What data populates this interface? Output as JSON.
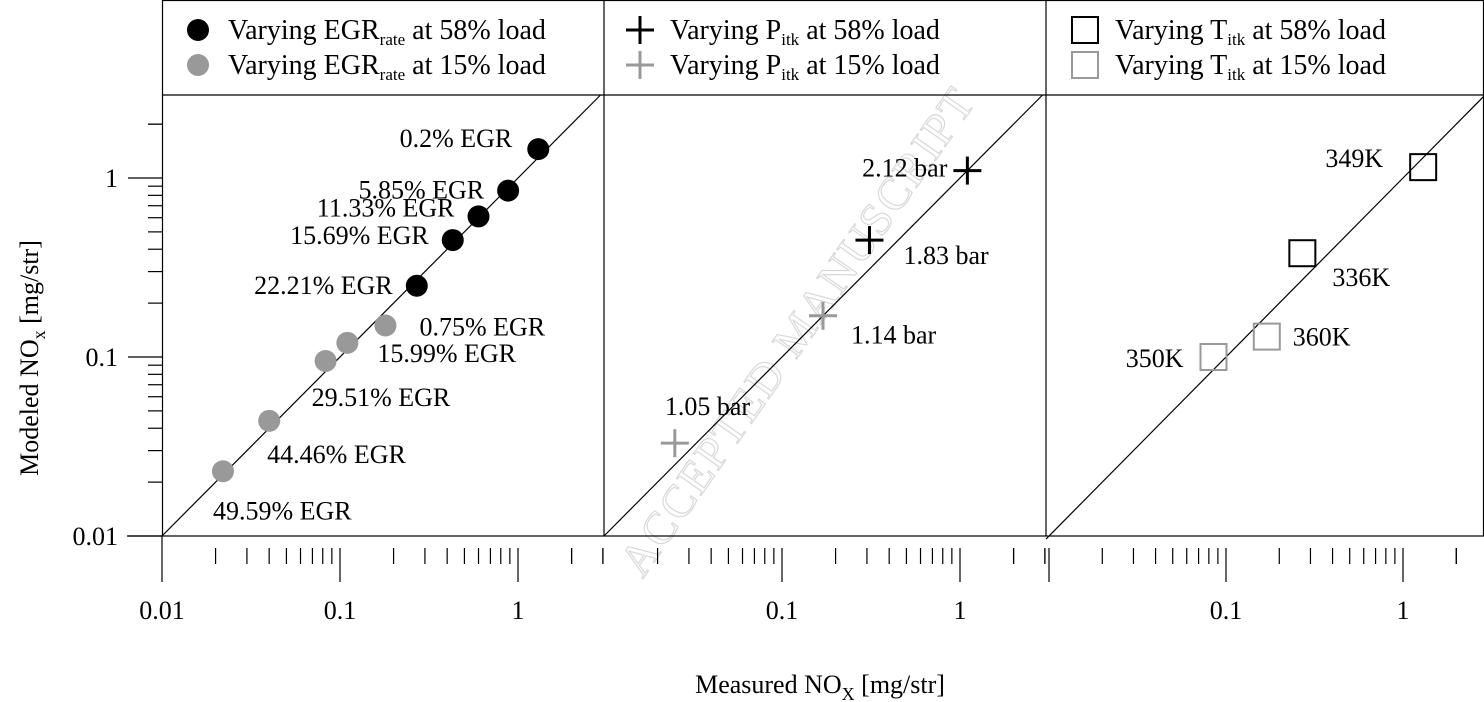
{
  "xlabel": "Measured NO",
  "xlabel_sub": "X",
  "xlabel_unit": " [mg/str]",
  "ylabel": "Modeled NO",
  "ylabel_sub": "x",
  "ylabel_unit": " [mg/str]",
  "watermark": "ACCEPTED MANUSCRIPT",
  "colors": {
    "black": "#000000",
    "gray": "#999999"
  },
  "panels": [
    {
      "legend": [
        {
          "marker": "filled-circle",
          "color": "#000000",
          "pre": "Varying EGR",
          "sub": "rate",
          "post": " at 58% load"
        },
        {
          "marker": "filled-circle",
          "color": "#999999",
          "pre": "Varying EGR",
          "sub": "rate",
          "post": " at 15% load"
        }
      ],
      "x_tick_labels": [
        "0.01",
        "0.1",
        "1"
      ]
    },
    {
      "legend": [
        {
          "marker": "plus",
          "color": "#000000",
          "pre": "Varying P",
          "sub": "itk",
          "post": " at 58% load"
        },
        {
          "marker": "plus",
          "color": "#999999",
          "pre": "Varying P",
          "sub": "itk",
          "post": " at 15% load"
        }
      ],
      "x_tick_labels": [
        "0.1",
        "1"
      ]
    },
    {
      "legend": [
        {
          "marker": "open-square",
          "color": "#000000",
          "pre": "Varying T",
          "sub": "itk",
          "post": " at 58% load"
        },
        {
          "marker": "open-square",
          "color": "#999999",
          "pre": "Varying T",
          "sub": "itk",
          "post": " at 15% load"
        }
      ],
      "x_tick_labels": [
        "0.1",
        "1"
      ]
    }
  ],
  "y_tick_labels": [
    "0.01",
    "0.1",
    "1"
  ],
  "chart_data": [
    {
      "type": "scatter",
      "xscale": "log",
      "yscale": "log",
      "xlim": [
        0.01,
        2.2
      ],
      "ylim": [
        0.01,
        3.1
      ],
      "reference_line": "y=x",
      "series": [
        {
          "marker": "filled-circle",
          "color": "#000000",
          "points": [
            {
              "x": 1.3,
              "y": 1.45,
              "label": "0.2% EGR"
            },
            {
              "x": 0.88,
              "y": 0.85,
              "label": "5.85% EGR"
            },
            {
              "x": 0.6,
              "y": 0.61,
              "label": "11.33% EGR"
            },
            {
              "x": 0.43,
              "y": 0.45,
              "label": "15.69% EGR"
            },
            {
              "x": 0.27,
              "y": 0.25,
              "label": "22.21% EGR"
            }
          ]
        },
        {
          "marker": "filled-circle",
          "color": "#999999",
          "points": [
            {
              "x": 0.18,
              "y": 0.15,
              "label": "0.75% EGR"
            },
            {
              "x": 0.11,
              "y": 0.12,
              "label": "15.99% EGR"
            },
            {
              "x": 0.083,
              "y": 0.095,
              "label": "29.51% EGR"
            },
            {
              "x": 0.04,
              "y": 0.044,
              "label": "44.46% EGR"
            },
            {
              "x": 0.022,
              "y": 0.023,
              "label": "49.59% EGR"
            }
          ]
        }
      ]
    },
    {
      "type": "scatter",
      "xscale": "log",
      "yscale": "log",
      "xlim": [
        0.022,
        2.2
      ],
      "ylim": [
        0.01,
        3.1
      ],
      "reference_line": "y=x",
      "series": [
        {
          "marker": "plus",
          "color": "#000000",
          "points": [
            {
              "x": 1.1,
              "y": 1.1,
              "label": "2.12 bar"
            },
            {
              "x": 0.31,
              "y": 0.45,
              "label": "1.83 bar"
            }
          ]
        },
        {
          "marker": "plus",
          "color": "#999999",
          "points": [
            {
              "x": 0.17,
              "y": 0.17,
              "label": "1.14 bar"
            },
            {
              "x": 0.025,
              "y": 0.033,
              "label": "1.05 bar"
            }
          ]
        }
      ]
    },
    {
      "type": "scatter",
      "xscale": "log",
      "yscale": "log",
      "xlim": [
        0.022,
        2.2
      ],
      "ylim": [
        0.01,
        3.1
      ],
      "reference_line": "y=x",
      "series": [
        {
          "marker": "open-square",
          "color": "#000000",
          "points": [
            {
              "x": 1.3,
              "y": 1.15,
              "label": "349K"
            },
            {
              "x": 0.27,
              "y": 0.38,
              "label": "336K"
            }
          ]
        },
        {
          "marker": "open-square",
          "color": "#999999",
          "points": [
            {
              "x": 0.085,
              "y": 0.1,
              "label": "350K"
            },
            {
              "x": 0.17,
              "y": 0.13,
              "label": "360K"
            }
          ]
        }
      ]
    }
  ]
}
